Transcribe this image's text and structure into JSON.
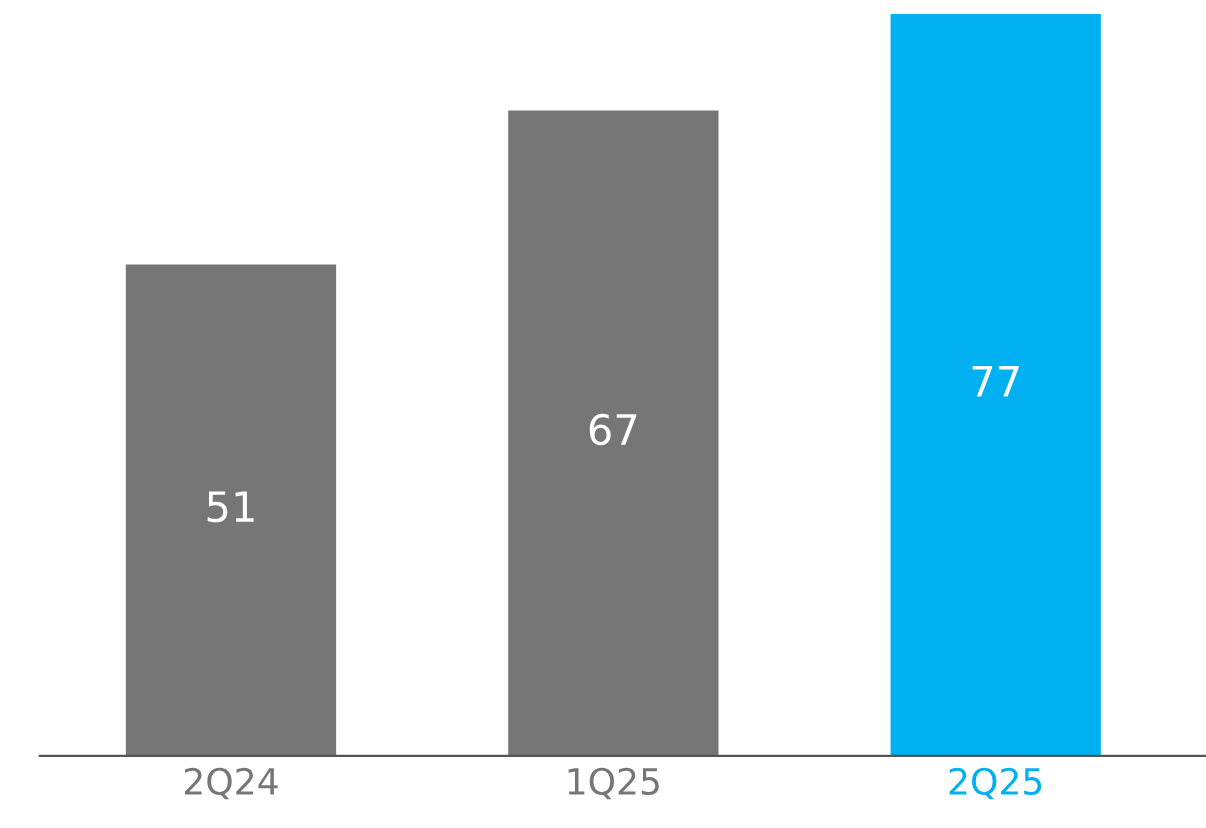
{
  "chart_data": {
    "type": "bar",
    "categories": [
      "2Q24",
      "1Q25",
      "2Q25"
    ],
    "values": [
      51,
      67,
      77
    ],
    "colors": [
      "#767676",
      "#767676",
      "#00b0f0"
    ],
    "data_labels": true,
    "grid": false,
    "legend": false
  }
}
